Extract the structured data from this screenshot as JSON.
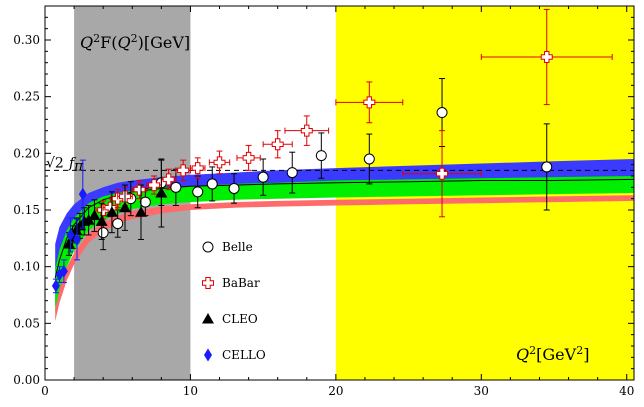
{
  "chart_data": {
    "type": "scatter",
    "title": "Q²F(Q²)[GeV]",
    "xlabel": "Q²[GeV²]",
    "ylabel": "",
    "xlim": [
      0,
      40.5
    ],
    "ylim": [
      0,
      0.33
    ],
    "x_ticks": [
      0,
      10,
      20,
      30,
      40
    ],
    "y_ticks": [
      0.0,
      0.05,
      0.1,
      0.15,
      0.2,
      0.25,
      0.3
    ],
    "grid": false,
    "legend_position": "center",
    "shaded_regions": [
      {
        "x_from": 2,
        "x_to": 10,
        "color": "#a8a8a8"
      },
      {
        "x_from": 20,
        "x_to": 40.5,
        "color": "#ffff00"
      }
    ],
    "reference_line": {
      "label": "√2 fπ",
      "label_root": "√2",
      "label_f": "f",
      "label_sub": "π",
      "y": 0.185,
      "style": "dashed"
    },
    "bands": [
      {
        "color": "#3b3bff",
        "x": [
          0.7,
          1,
          1.5,
          2,
          3,
          4,
          5,
          6,
          8,
          10,
          13,
          16,
          20,
          25,
          30,
          35,
          40.5
        ],
        "lower": [
          0.065,
          0.085,
          0.108,
          0.122,
          0.142,
          0.152,
          0.158,
          0.162,
          0.166,
          0.168,
          0.17,
          0.172,
          0.173,
          0.174,
          0.175,
          0.176,
          0.176
        ],
        "upper": [
          0.12,
          0.135,
          0.147,
          0.155,
          0.165,
          0.17,
          0.174,
          0.176,
          0.179,
          0.181,
          0.183,
          0.185,
          0.187,
          0.189,
          0.191,
          0.193,
          0.195
        ]
      },
      {
        "color": "#00ee00",
        "x": [
          0.7,
          1,
          1.5,
          2,
          3,
          4,
          5,
          6,
          8,
          10,
          13,
          16,
          20,
          25,
          30,
          35,
          40.5
        ],
        "lower": [
          0.06,
          0.078,
          0.1,
          0.114,
          0.132,
          0.141,
          0.147,
          0.151,
          0.155,
          0.157,
          0.159,
          0.16,
          0.161,
          0.162,
          0.163,
          0.164,
          0.165
        ],
        "upper": [
          0.098,
          0.115,
          0.132,
          0.143,
          0.156,
          0.162,
          0.165,
          0.167,
          0.17,
          0.171,
          0.173,
          0.174,
          0.176,
          0.177,
          0.178,
          0.179,
          0.18
        ]
      },
      {
        "color": "#ff6b6b",
        "x": [
          0.7,
          1,
          1.5,
          2,
          3,
          4,
          5,
          6,
          8,
          10,
          13,
          16,
          20,
          25,
          30,
          35,
          40.5
        ],
        "lower": [
          0.052,
          0.068,
          0.088,
          0.102,
          0.121,
          0.131,
          0.138,
          0.142,
          0.147,
          0.15,
          0.152,
          0.153,
          0.154,
          0.155,
          0.156,
          0.157,
          0.158
        ],
        "upper": [
          0.063,
          0.08,
          0.1,
          0.112,
          0.13,
          0.139,
          0.145,
          0.149,
          0.153,
          0.155,
          0.157,
          0.158,
          0.159,
          0.16,
          0.161,
          0.162,
          0.163
        ]
      }
    ],
    "curves": [
      {
        "color": "#000000",
        "x": [
          0.7,
          1,
          1.5,
          2,
          3,
          4,
          5,
          6,
          8,
          10,
          13,
          16,
          20,
          25,
          30,
          35,
          40.5
        ],
        "y": [
          0.09,
          0.106,
          0.125,
          0.137,
          0.152,
          0.159,
          0.163,
          0.166,
          0.169,
          0.171,
          0.172,
          0.173,
          0.174,
          0.175,
          0.176,
          0.176,
          0.177
        ]
      }
    ],
    "series": [
      {
        "name": "Belle",
        "marker": "circle",
        "points": [
          {
            "x": 4.0,
            "y": 0.13,
            "yerr": 0.015,
            "xerr": 0
          },
          {
            "x": 5.0,
            "y": 0.138,
            "yerr": 0.012,
            "xerr": 0
          },
          {
            "x": 5.9,
            "y": 0.16,
            "yerr": 0.015,
            "xerr": 0
          },
          {
            "x": 6.9,
            "y": 0.157,
            "yerr": 0.012,
            "xerr": 0
          },
          {
            "x": 8.0,
            "y": 0.174,
            "yerr": 0.02,
            "xerr": 0
          },
          {
            "x": 9.0,
            "y": 0.17,
            "yerr": 0.016,
            "xerr": 0
          },
          {
            "x": 10.5,
            "y": 0.166,
            "yerr": 0.014,
            "xerr": 0
          },
          {
            "x": 11.5,
            "y": 0.173,
            "yerr": 0.015,
            "xerr": 0
          },
          {
            "x": 13.0,
            "y": 0.169,
            "yerr": 0.013,
            "xerr": 0
          },
          {
            "x": 15.0,
            "y": 0.179,
            "yerr": 0.016,
            "xerr": 0
          },
          {
            "x": 17.0,
            "y": 0.183,
            "yerr": 0.018,
            "xerr": 0
          },
          {
            "x": 19.0,
            "y": 0.198,
            "yerr": 0.02,
            "xerr": 0
          },
          {
            "x": 22.3,
            "y": 0.195,
            "yerr": 0.022,
            "xerr": 0
          },
          {
            "x": 27.3,
            "y": 0.236,
            "yerr": 0.03,
            "xerr": 0
          },
          {
            "x": 34.5,
            "y": 0.188,
            "yerr": 0.038,
            "xerr": 0
          }
        ]
      },
      {
        "name": "BaBar",
        "marker": "cross",
        "points": [
          {
            "x": 4.0,
            "y": 0.15,
            "yerr": 0.008,
            "xerr": 0.5
          },
          {
            "x": 4.5,
            "y": 0.152,
            "yerr": 0.008,
            "xerr": 0.5
          },
          {
            "x": 5.0,
            "y": 0.16,
            "yerr": 0.008,
            "xerr": 0.5
          },
          {
            "x": 5.5,
            "y": 0.162,
            "yerr": 0.008,
            "xerr": 0.5
          },
          {
            "x": 6.5,
            "y": 0.168,
            "yerr": 0.008,
            "xerr": 0.5
          },
          {
            "x": 7.5,
            "y": 0.172,
            "yerr": 0.008,
            "xerr": 0.5
          },
          {
            "x": 8.5,
            "y": 0.177,
            "yerr": 0.009,
            "xerr": 0.5
          },
          {
            "x": 9.5,
            "y": 0.185,
            "yerr": 0.009,
            "xerr": 0.5
          },
          {
            "x": 10.5,
            "y": 0.187,
            "yerr": 0.009,
            "xerr": 0.5
          },
          {
            "x": 12.0,
            "y": 0.192,
            "yerr": 0.01,
            "xerr": 0.7
          },
          {
            "x": 14.0,
            "y": 0.196,
            "yerr": 0.011,
            "xerr": 0.8
          },
          {
            "x": 16.0,
            "y": 0.208,
            "yerr": 0.012,
            "xerr": 1.0
          },
          {
            "x": 18.0,
            "y": 0.22,
            "yerr": 0.013,
            "xerr": 1.5
          },
          {
            "x": 22.3,
            "y": 0.245,
            "yerr": 0.018,
            "xerr": 2.3
          },
          {
            "x": 27.3,
            "y": 0.182,
            "yerr": 0.038,
            "xerr": 2.7
          },
          {
            "x": 34.5,
            "y": 0.285,
            "yerr": 0.042,
            "xerr": 4.5
          }
        ]
      },
      {
        "name": "CLEO",
        "marker": "triangle",
        "points": [
          {
            "x": 1.65,
            "y": 0.12,
            "yerr": 0.01,
            "xerr": 0
          },
          {
            "x": 1.9,
            "y": 0.126,
            "yerr": 0.01,
            "xerr": 0
          },
          {
            "x": 2.15,
            "y": 0.132,
            "yerr": 0.011,
            "xerr": 0
          },
          {
            "x": 2.4,
            "y": 0.136,
            "yerr": 0.011,
            "xerr": 0
          },
          {
            "x": 2.7,
            "y": 0.14,
            "yerr": 0.012,
            "xerr": 0
          },
          {
            "x": 3.0,
            "y": 0.141,
            "yerr": 0.013,
            "xerr": 0
          },
          {
            "x": 3.4,
            "y": 0.145,
            "yerr": 0.014,
            "xerr": 0
          },
          {
            "x": 3.9,
            "y": 0.14,
            "yerr": 0.016,
            "xerr": 0
          },
          {
            "x": 4.6,
            "y": 0.148,
            "yerr": 0.018,
            "xerr": 0
          },
          {
            "x": 5.5,
            "y": 0.152,
            "yerr": 0.02,
            "xerr": 0
          },
          {
            "x": 6.6,
            "y": 0.148,
            "yerr": 0.024,
            "xerr": 0
          },
          {
            "x": 8.0,
            "y": 0.165,
            "yerr": 0.03,
            "xerr": 0
          }
        ]
      },
      {
        "name": "CELLO",
        "marker": "diamond",
        "points": [
          {
            "x": 0.75,
            "y": 0.083,
            "yerr": 0.006,
            "xerr": 0
          },
          {
            "x": 1.0,
            "y": 0.093,
            "yerr": 0.007,
            "xerr": 0
          },
          {
            "x": 1.3,
            "y": 0.096,
            "yerr": 0.01,
            "xerr": 0
          },
          {
            "x": 1.75,
            "y": 0.128,
            "yerr": 0.015,
            "xerr": 0
          },
          {
            "x": 2.2,
            "y": 0.124,
            "yerr": 0.018,
            "xerr": 0
          },
          {
            "x": 2.6,
            "y": 0.164,
            "yerr": 0.03,
            "xerr": 0
          }
        ]
      }
    ]
  }
}
